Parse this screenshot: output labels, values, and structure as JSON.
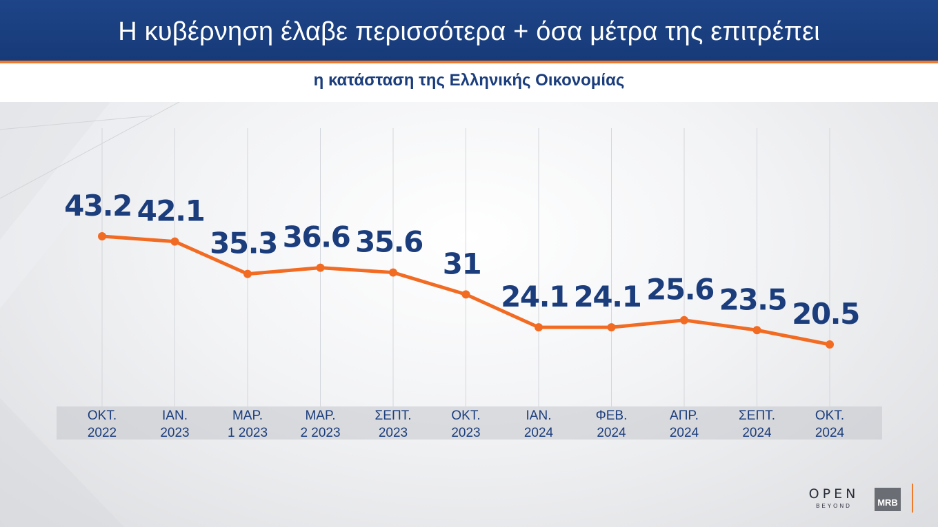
{
  "header": {
    "title": "Η κυβέρνηση έλαβε περισσότερα + όσα μέτρα της επιτρέπει",
    "subtitle": "η κατάσταση της Ελληνικής Οικονομίας"
  },
  "colors": {
    "header_bg": "#1e4588",
    "accent": "#f07a2a",
    "text_dark_blue": "#1b3d7c",
    "line": "#f26b22"
  },
  "chart_data": {
    "type": "line",
    "categories": [
      [
        "ΟΚΤ.",
        "2022"
      ],
      [
        "ΙΑΝ.",
        "2023"
      ],
      [
        "ΜΑΡ.",
        "1 2023"
      ],
      [
        "ΜΑΡ.",
        "2 2023"
      ],
      [
        "ΣΕΠΤ.",
        "2023"
      ],
      [
        "ΟΚΤ.",
        "2023"
      ],
      [
        "ΙΑΝ.",
        "2024"
      ],
      [
        "ΦΕΒ.",
        "2024"
      ],
      [
        "ΑΠΡ.",
        "2024"
      ],
      [
        "ΣΕΠΤ.",
        "2024"
      ],
      [
        "ΟΚΤ.",
        "2024"
      ]
    ],
    "series": [
      {
        "values": [
          43.2,
          42.1,
          35.3,
          36.6,
          35.6,
          31,
          24.1,
          24.1,
          25.6,
          23.5,
          20.5
        ],
        "labels": [
          "43.2",
          "42.1",
          "35.3",
          "36.6",
          "35.6",
          "31",
          "24.1",
          "24.1",
          "25.6",
          "23.5",
          "20.5"
        ]
      }
    ],
    "grid": "vertical",
    "data_labels": true,
    "legend": "none"
  },
  "logos": {
    "open_word": "OPEN",
    "open_tagline": "BEYOND",
    "mrb": "MRB"
  }
}
